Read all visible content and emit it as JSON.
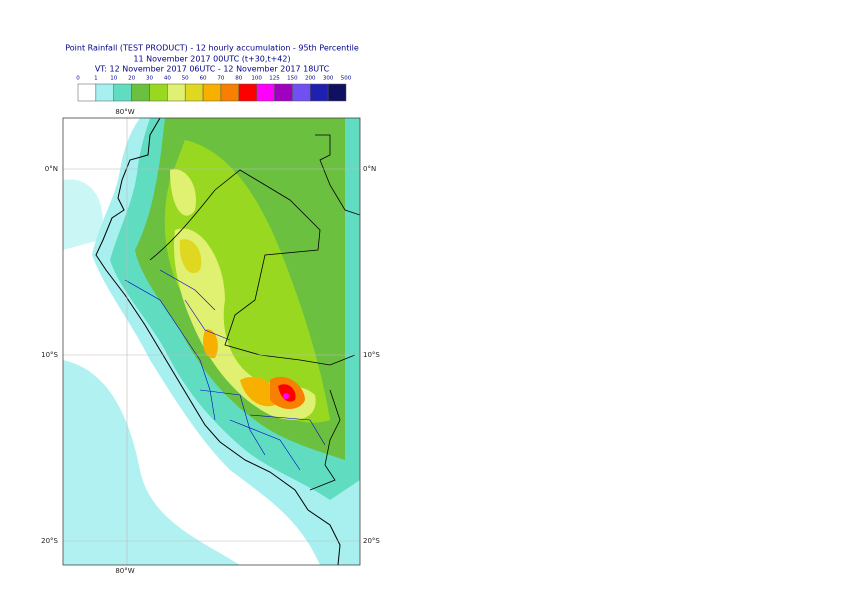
{
  "header": {
    "title": "Point Rainfall (TEST PRODUCT) - 12 hourly accumulation - 95th Percentile",
    "subtitle": "11 November 2017 00UTC (t+30,t+42)",
    "valid_time": "VT: 12 November 2017 06UTC - 12 November 2017 18UTC"
  },
  "legend": {
    "labels": [
      "0",
      "1",
      "10",
      "20",
      "30",
      "40",
      "50",
      "60",
      "70",
      "80",
      "100",
      "125",
      "150",
      "200",
      "300",
      "500"
    ],
    "colors": [
      "#ffffff",
      "#a8f0f0",
      "#60dcc0",
      "#6cc040",
      "#98d820",
      "#e0f070",
      "#e0d820",
      "#f8b000",
      "#f88000",
      "#ff0000",
      "#ff00ff",
      "#a000c0",
      "#7050f0",
      "#2020b0",
      "#101060"
    ]
  },
  "map": {
    "lon_label": "80°W",
    "lat_labels": [
      "0°N",
      "10°S",
      "20°S"
    ]
  }
}
